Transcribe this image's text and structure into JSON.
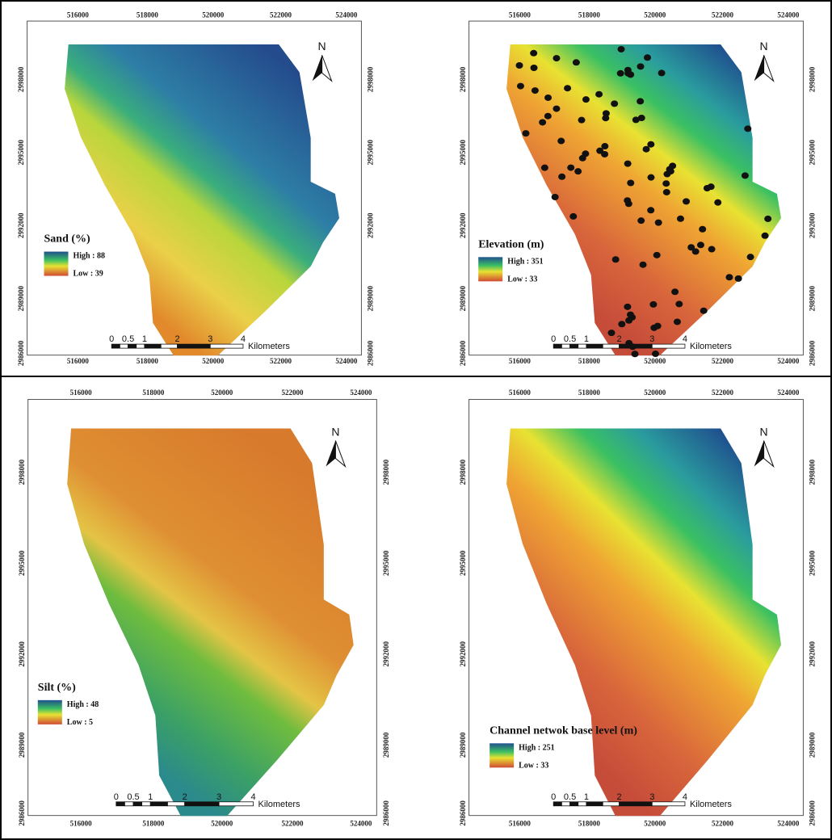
{
  "axes": {
    "x_labels": [
      "516000",
      "518000",
      "520000",
      "522000",
      "524000"
    ],
    "y_labels": [
      "2986000",
      "2989000",
      "2992000",
      "2995000",
      "2998000"
    ]
  },
  "north": "N",
  "scale_bar": {
    "labels": [
      "0",
      "0.5",
      "1",
      "2",
      "3",
      "4"
    ],
    "unit": "Kilometers"
  },
  "panels": [
    {
      "legend_title": "Sand (%)",
      "high": "High : 88",
      "low": "Low : 39"
    },
    {
      "legend_title": "Elevation (m)",
      "high": "High : 351",
      "low": "Low : 33"
    },
    {
      "legend_title": "Silt (%)",
      "high": "High : 48",
      "low": "Low : 5"
    },
    {
      "legend_title": "Channel netwok base level (m)",
      "high": "High : 251",
      "low": "Low : 33"
    }
  ]
}
